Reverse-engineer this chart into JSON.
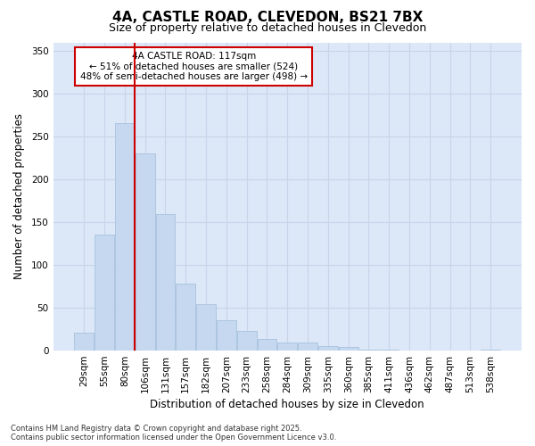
{
  "title_line1": "4A, CASTLE ROAD, CLEVEDON, BS21 7BX",
  "title_line2": "Size of property relative to detached houses in Clevedon",
  "xlabel": "Distribution of detached houses by size in Clevedon",
  "ylabel": "Number of detached properties",
  "bar_color": "#c5d8f0",
  "bar_edge_color": "#a0bcd8",
  "vline_color": "#cc0000",
  "vline_x_index": 3,
  "annotation_text": "4A CASTLE ROAD: 117sqm\n← 51% of detached houses are smaller (524)\n48% of semi-detached houses are larger (498) →",
  "annotation_box_color": "#ffffff",
  "annotation_box_edge_color": "#cc0000",
  "categories": [
    "29sqm",
    "55sqm",
    "80sqm",
    "106sqm",
    "131sqm",
    "157sqm",
    "182sqm",
    "207sqm",
    "233sqm",
    "258sqm",
    "284sqm",
    "309sqm",
    "335sqm",
    "360sqm",
    "385sqm",
    "411sqm",
    "436sqm",
    "462sqm",
    "487sqm",
    "513sqm",
    "538sqm"
  ],
  "values": [
    21,
    135,
    266,
    230,
    159,
    78,
    54,
    36,
    23,
    14,
    9,
    9,
    5,
    4,
    1,
    1,
    0,
    0,
    0,
    0,
    1
  ],
  "ylim": [
    0,
    360
  ],
  "yticks": [
    0,
    50,
    100,
    150,
    200,
    250,
    300,
    350
  ],
  "grid_color": "#c8d4e8",
  "plot_bg_color": "#dce8f8",
  "fig_bg_color": "#ffffff",
  "footer_text": "Contains HM Land Registry data © Crown copyright and database right 2025.\nContains public sector information licensed under the Open Government Licence v3.0."
}
